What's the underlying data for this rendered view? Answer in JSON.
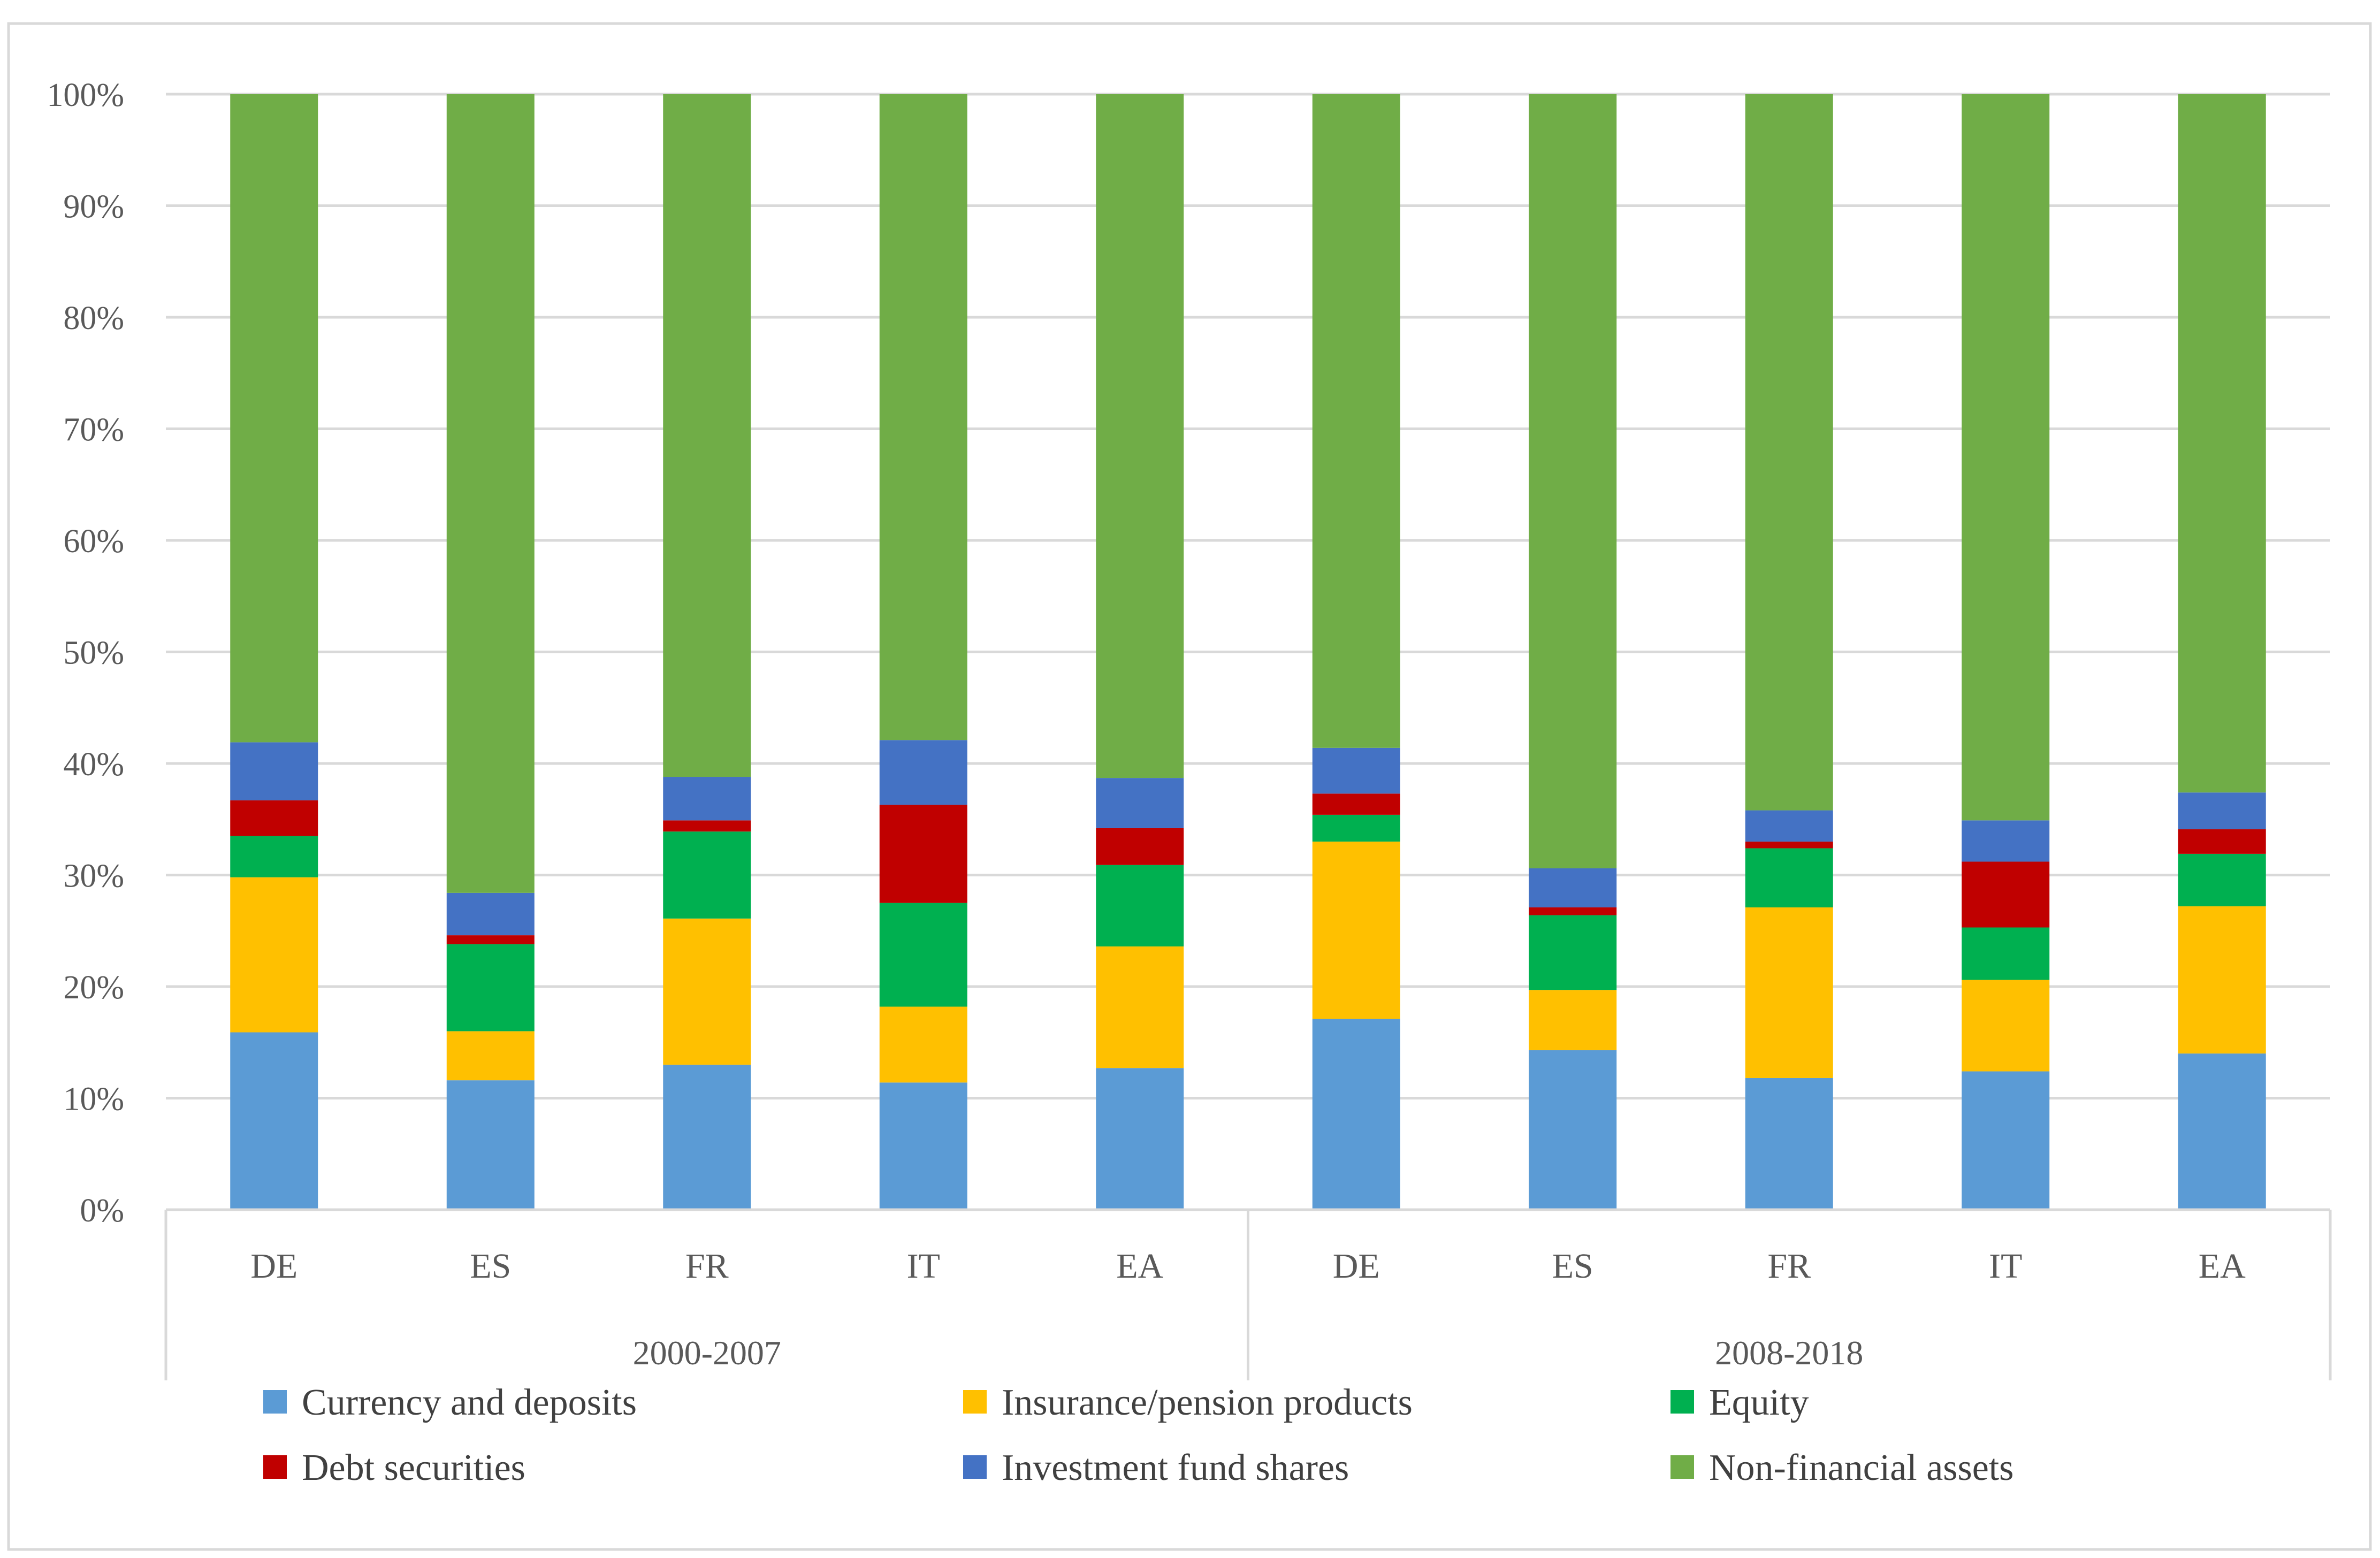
{
  "chart_data": {
    "type": "bar",
    "stacked": true,
    "title": "",
    "xlabel": "",
    "ylabel": "",
    "ylim": [
      0,
      100
    ],
    "yticks": [
      "0%",
      "10%",
      "20%",
      "30%",
      "40%",
      "50%",
      "60%",
      "70%",
      "80%",
      "90%",
      "100%"
    ],
    "groups": [
      {
        "label": "2000-2007",
        "categories": [
          "DE",
          "ES",
          "FR",
          "IT",
          "EA"
        ]
      },
      {
        "label": "2008-2018",
        "categories": [
          "DE",
          "ES",
          "FR",
          "IT",
          "EA"
        ]
      }
    ],
    "categories": [
      "DE",
      "ES",
      "FR",
      "IT",
      "EA",
      "DE",
      "ES",
      "FR",
      "IT",
      "EA"
    ],
    "series": [
      {
        "name": "Currency and deposits",
        "color": "#5b9bd5",
        "values": [
          15.9,
          11.6,
          13.0,
          11.4,
          12.7,
          17.1,
          14.3,
          11.8,
          12.4,
          14.0
        ]
      },
      {
        "name": "Insurance/pension products",
        "color": "#ffc000",
        "values": [
          13.9,
          4.4,
          13.1,
          6.8,
          10.9,
          15.9,
          5.4,
          15.3,
          8.2,
          13.2
        ]
      },
      {
        "name": "Equity",
        "color": "#00b050",
        "values": [
          3.7,
          7.8,
          7.8,
          9.3,
          7.3,
          2.4,
          6.7,
          5.3,
          4.7,
          4.7
        ]
      },
      {
        "name": "Debt securities",
        "color": "#c00000",
        "values": [
          3.2,
          0.8,
          1.0,
          8.8,
          3.3,
          1.9,
          0.7,
          0.6,
          5.9,
          2.2
        ]
      },
      {
        "name": "Investment fund shares",
        "color": "#4472c4",
        "values": [
          5.2,
          3.8,
          3.9,
          5.8,
          4.5,
          4.1,
          3.5,
          2.8,
          3.7,
          3.3
        ]
      },
      {
        "name": "Non-financial assets",
        "color": "#70ad47",
        "values": [
          58.1,
          71.6,
          61.2,
          57.9,
          61.3,
          58.6,
          69.4,
          64.2,
          65.1,
          62.6
        ]
      }
    ],
    "legend_position": "bottom"
  }
}
